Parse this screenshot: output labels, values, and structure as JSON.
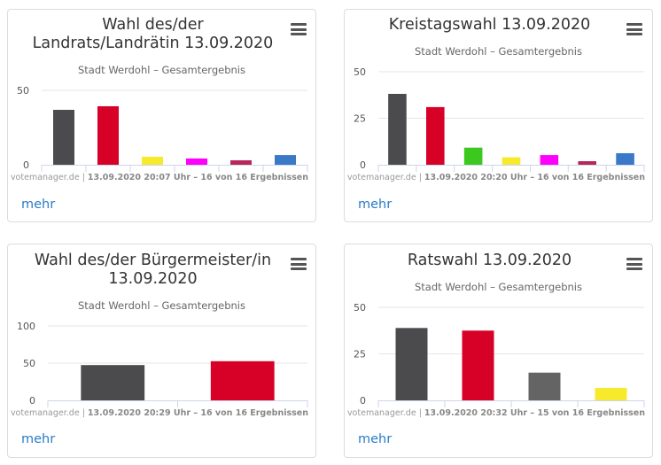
{
  "cards": [
    {
      "title_lines": [
        "Wahl des/der",
        "Landrats/Landrätin 13.09.2020"
      ],
      "subtitle": "Stadt Werdohl – Gesamtergebnis",
      "credits_source": "votemanager.de",
      "credits_sep": " | ",
      "credits_detail": "13.09.2020 20:07 Uhr – 16 von 16 Ergebnissen",
      "more_link": "mehr",
      "menu_icon": "hamburger-menu-icon"
    },
    {
      "title_lines": [
        "Kreistagswahl 13.09.2020"
      ],
      "subtitle": "Stadt Werdohl – Gesamtergebnis",
      "credits_source": "votemanager.de",
      "credits_sep": " | ",
      "credits_detail": "13.09.2020 20:20 Uhr – 16 von 16 Ergebnissen",
      "more_link": "mehr",
      "menu_icon": "hamburger-menu-icon"
    },
    {
      "title_lines": [
        "Wahl des/der Bürgermeister/in",
        "13.09.2020"
      ],
      "subtitle": "Stadt Werdohl – Gesamtergebnis",
      "credits_source": "votemanager.de",
      "credits_sep": " | ",
      "credits_detail": "13.09.2020 20:29 Uhr – 16 von 16 Ergebnissen",
      "more_link": "mehr",
      "menu_icon": "hamburger-menu-icon"
    },
    {
      "title_lines": [
        "Ratswahl 13.09.2020"
      ],
      "subtitle": "Stadt Werdohl – Gesamtergebnis",
      "credits_source": "votemanager.de",
      "credits_sep": " | ",
      "credits_detail": "13.09.2020 20:32 Uhr – 15 von 16 Ergebnissen",
      "more_link": "mehr",
      "menu_icon": "hamburger-menu-icon"
    }
  ],
  "chart_data": [
    {
      "type": "bar",
      "title": "Wahl des/der Landrats/Landrätin 13.09.2020",
      "subtitle": "Stadt Werdohl – Gesamtergebnis",
      "categories": [
        "",
        "",
        "",
        "",
        "",
        ""
      ],
      "values": [
        36.9,
        39.3,
        5.4,
        4.2,
        3.0,
        6.5
      ],
      "colors": [
        "#4b4b4d",
        "#d70027",
        "#f7e92c",
        "#ff00ff",
        "#b8255a",
        "#3a78c8"
      ],
      "yticks": [
        0,
        50
      ],
      "ylim": [
        0,
        50
      ],
      "xlabel": "",
      "ylabel": "",
      "grid": true,
      "legend": "none"
    },
    {
      "type": "bar",
      "title": "Kreistagswahl 13.09.2020",
      "subtitle": "Stadt Werdohl – Gesamtergebnis",
      "categories": [
        "",
        "",
        "",
        "",
        "",
        "",
        ""
      ],
      "values": [
        38.1,
        31.0,
        9.2,
        4.0,
        5.2,
        1.9,
        6.2
      ],
      "colors": [
        "#4b4b4d",
        "#d70027",
        "#3cc81e",
        "#f7e92c",
        "#ff00ff",
        "#b8255a",
        "#3a78c8"
      ],
      "yticks": [
        0,
        25,
        50
      ],
      "ylim": [
        0,
        50
      ],
      "xlabel": "",
      "ylabel": "",
      "grid": true,
      "legend": "none"
    },
    {
      "type": "bar",
      "title": "Wahl des/der Bürgermeister/in 13.09.2020",
      "subtitle": "Stadt Werdohl – Gesamtergebnis",
      "categories": [
        "",
        ""
      ],
      "values": [
        47.4,
        52.6
      ],
      "colors": [
        "#4b4b4d",
        "#d70027"
      ],
      "yticks": [
        0,
        50,
        100
      ],
      "ylim": [
        0,
        100
      ],
      "xlabel": "",
      "ylabel": "",
      "grid": true,
      "legend": "none"
    },
    {
      "type": "bar",
      "title": "Ratswahl 13.09.2020",
      "subtitle": "Stadt Werdohl – Gesamtergebnis",
      "categories": [
        "",
        "",
        "",
        ""
      ],
      "values": [
        38.9,
        37.5,
        14.9,
        6.7
      ],
      "colors": [
        "#4b4b4d",
        "#d70027",
        "#646464",
        "#f7e92c"
      ],
      "yticks": [
        0,
        25,
        50
      ],
      "ylim": [
        0,
        50
      ],
      "xlabel": "",
      "ylabel": "",
      "grid": true,
      "legend": "none"
    }
  ]
}
